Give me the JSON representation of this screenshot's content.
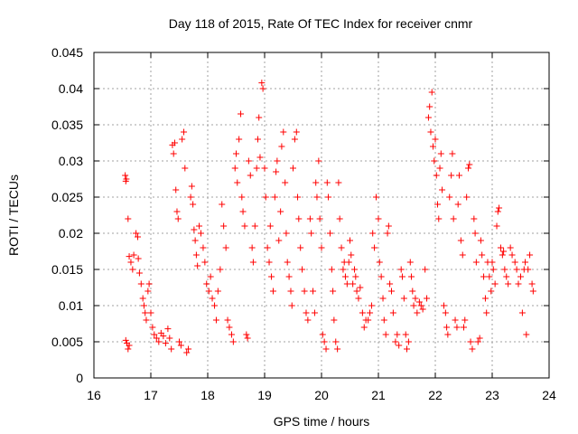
{
  "chart_data": {
    "type": "scatter",
    "title": "Day 118 of 2015, Rate Of TEC Index for receiver cnmr",
    "xlabel": "GPS time / hours",
    "ylabel": "ROTI / TECUs",
    "xlim": [
      16,
      24
    ],
    "ylim": [
      0,
      0.045
    ],
    "grid": true,
    "marker": "+",
    "color": "#ff0000",
    "xticks": [
      16,
      17,
      18,
      19,
      20,
      21,
      22,
      23,
      24
    ],
    "xtick_labels": [
      "16",
      "17",
      "18",
      "19",
      "20",
      "21",
      "22",
      "23",
      "24"
    ],
    "yticks": [
      0,
      0.005,
      0.01,
      0.015,
      0.02,
      0.025,
      0.03,
      0.035,
      0.04,
      0.045
    ],
    "ytick_labels": [
      "0",
      "0.005",
      "0.01",
      "0.015",
      "0.02",
      "0.025",
      "0.03",
      "0.035",
      "0.04",
      "0.045"
    ],
    "points": [
      [
        16.55,
        0.028
      ],
      [
        16.56,
        0.0272
      ],
      [
        16.57,
        0.0275
      ],
      [
        16.56,
        0.0052
      ],
      [
        16.58,
        0.0048
      ],
      [
        16.6,
        0.004
      ],
      [
        16.62,
        0.0045
      ],
      [
        16.6,
        0.022
      ],
      [
        16.62,
        0.0168
      ],
      [
        16.65,
        0.016
      ],
      [
        16.68,
        0.015
      ],
      [
        16.7,
        0.017
      ],
      [
        16.74,
        0.02
      ],
      [
        16.77,
        0.0195
      ],
      [
        16.78,
        0.0165
      ],
      [
        16.8,
        0.0145
      ],
      [
        16.83,
        0.013
      ],
      [
        16.86,
        0.011
      ],
      [
        16.88,
        0.01
      ],
      [
        16.9,
        0.009
      ],
      [
        16.92,
        0.008
      ],
      [
        16.95,
        0.012
      ],
      [
        16.97,
        0.013
      ],
      [
        17.0,
        0.009
      ],
      [
        17.03,
        0.007
      ],
      [
        17.06,
        0.006
      ],
      [
        17.1,
        0.0055
      ],
      [
        17.14,
        0.005
      ],
      [
        17.18,
        0.0062
      ],
      [
        17.22,
        0.0058
      ],
      [
        17.26,
        0.0048
      ],
      [
        17.3,
        0.0068
      ],
      [
        17.33,
        0.0055
      ],
      [
        17.36,
        0.004
      ],
      [
        17.38,
        0.0322
      ],
      [
        17.4,
        0.031
      ],
      [
        17.42,
        0.0325
      ],
      [
        17.44,
        0.026
      ],
      [
        17.46,
        0.023
      ],
      [
        17.48,
        0.022
      ],
      [
        17.5,
        0.005
      ],
      [
        17.53,
        0.0045
      ],
      [
        17.55,
        0.033
      ],
      [
        17.58,
        0.034
      ],
      [
        17.6,
        0.029
      ],
      [
        17.63,
        0.0035
      ],
      [
        17.66,
        0.004
      ],
      [
        17.7,
        0.025
      ],
      [
        17.72,
        0.0265
      ],
      [
        17.74,
        0.024
      ],
      [
        17.76,
        0.0205
      ],
      [
        17.78,
        0.019
      ],
      [
        17.8,
        0.017
      ],
      [
        17.82,
        0.0155
      ],
      [
        17.85,
        0.021
      ],
      [
        17.88,
        0.02
      ],
      [
        17.92,
        0.018
      ],
      [
        17.95,
        0.016
      ],
      [
        17.98,
        0.013
      ],
      [
        18.02,
        0.012
      ],
      [
        18.05,
        0.014
      ],
      [
        18.08,
        0.011
      ],
      [
        18.12,
        0.01
      ],
      [
        18.15,
        0.008
      ],
      [
        18.18,
        0.012
      ],
      [
        18.22,
        0.015
      ],
      [
        18.25,
        0.024
      ],
      [
        18.28,
        0.021
      ],
      [
        18.32,
        0.018
      ],
      [
        18.35,
        0.008
      ],
      [
        18.38,
        0.007
      ],
      [
        18.42,
        0.006
      ],
      [
        18.45,
        0.005
      ],
      [
        18.48,
        0.029
      ],
      [
        18.5,
        0.031
      ],
      [
        18.52,
        0.027
      ],
      [
        18.55,
        0.033
      ],
      [
        18.58,
        0.0365
      ],
      [
        18.6,
        0.025
      ],
      [
        18.62,
        0.023
      ],
      [
        18.65,
        0.021
      ],
      [
        18.68,
        0.006
      ],
      [
        18.7,
        0.0055
      ],
      [
        18.72,
        0.03
      ],
      [
        18.75,
        0.028
      ],
      [
        18.78,
        0.018
      ],
      [
        18.8,
        0.016
      ],
      [
        18.83,
        0.021
      ],
      [
        18.86,
        0.029
      ],
      [
        18.88,
        0.033
      ],
      [
        18.9,
        0.036
      ],
      [
        18.92,
        0.0305
      ],
      [
        18.95,
        0.0408
      ],
      [
        18.97,
        0.04
      ],
      [
        19.0,
        0.029
      ],
      [
        19.02,
        0.025
      ],
      [
        19.05,
        0.018
      ],
      [
        19.08,
        0.016
      ],
      [
        19.1,
        0.021
      ],
      [
        19.12,
        0.014
      ],
      [
        19.15,
        0.012
      ],
      [
        19.18,
        0.025
      ],
      [
        19.2,
        0.0285
      ],
      [
        19.22,
        0.03
      ],
      [
        19.25,
        0.019
      ],
      [
        19.28,
        0.023
      ],
      [
        19.3,
        0.032
      ],
      [
        19.33,
        0.034
      ],
      [
        19.36,
        0.027
      ],
      [
        19.38,
        0.02
      ],
      [
        19.4,
        0.016
      ],
      [
        19.43,
        0.014
      ],
      [
        19.46,
        0.012
      ],
      [
        19.48,
        0.01
      ],
      [
        19.5,
        0.029
      ],
      [
        19.53,
        0.033
      ],
      [
        19.56,
        0.034
      ],
      [
        19.58,
        0.025
      ],
      [
        19.6,
        0.022
      ],
      [
        19.63,
        0.018
      ],
      [
        19.66,
        0.015
      ],
      [
        19.7,
        0.012
      ],
      [
        19.73,
        0.009
      ],
      [
        19.76,
        0.008
      ],
      [
        19.8,
        0.022
      ],
      [
        19.82,
        0.02
      ],
      [
        19.85,
        0.012
      ],
      [
        19.88,
        0.009
      ],
      [
        19.9,
        0.027
      ],
      [
        19.92,
        0.025
      ],
      [
        19.95,
        0.03
      ],
      [
        19.97,
        0.022
      ],
      [
        20.0,
        0.018
      ],
      [
        20.02,
        0.006
      ],
      [
        20.05,
        0.005
      ],
      [
        20.08,
        0.004
      ],
      [
        20.1,
        0.027
      ],
      [
        20.12,
        0.025
      ],
      [
        20.15,
        0.02
      ],
      [
        20.18,
        0.015
      ],
      [
        20.2,
        0.012
      ],
      [
        20.22,
        0.008
      ],
      [
        20.25,
        0.005
      ],
      [
        20.28,
        0.004
      ],
      [
        20.3,
        0.027
      ],
      [
        20.32,
        0.022
      ],
      [
        20.35,
        0.018
      ],
      [
        20.38,
        0.015
      ],
      [
        20.4,
        0.016
      ],
      [
        20.42,
        0.014
      ],
      [
        20.45,
        0.013
      ],
      [
        20.48,
        0.016
      ],
      [
        20.5,
        0.019
      ],
      [
        20.52,
        0.017
      ],
      [
        20.55,
        0.013
      ],
      [
        20.58,
        0.015
      ],
      [
        20.6,
        0.014
      ],
      [
        20.62,
        0.012
      ],
      [
        20.65,
        0.011
      ],
      [
        20.68,
        0.0125
      ],
      [
        20.72,
        0.009
      ],
      [
        20.75,
        0.007
      ],
      [
        20.78,
        0.008
      ],
      [
        20.82,
        0.008
      ],
      [
        20.85,
        0.009
      ],
      [
        20.88,
        0.01
      ],
      [
        20.9,
        0.02
      ],
      [
        20.93,
        0.018
      ],
      [
        20.96,
        0.025
      ],
      [
        21.0,
        0.022
      ],
      [
        21.02,
        0.016
      ],
      [
        21.05,
        0.014
      ],
      [
        21.08,
        0.011
      ],
      [
        21.1,
        0.008
      ],
      [
        21.13,
        0.006
      ],
      [
        21.16,
        0.02
      ],
      [
        21.18,
        0.021
      ],
      [
        21.2,
        0.013
      ],
      [
        21.23,
        0.012
      ],
      [
        21.26,
        0.009
      ],
      [
        21.3,
        0.005
      ],
      [
        21.33,
        0.006
      ],
      [
        21.36,
        0.0045
      ],
      [
        21.4,
        0.015
      ],
      [
        21.42,
        0.014
      ],
      [
        21.45,
        0.011
      ],
      [
        21.48,
        0.006
      ],
      [
        21.5,
        0.004
      ],
      [
        21.53,
        0.005
      ],
      [
        21.56,
        0.016
      ],
      [
        21.58,
        0.014
      ],
      [
        21.6,
        0.012
      ],
      [
        21.62,
        0.01
      ],
      [
        21.65,
        0.011
      ],
      [
        21.68,
        0.009
      ],
      [
        21.72,
        0.0105
      ],
      [
        21.75,
        0.01
      ],
      [
        21.78,
        0.0095
      ],
      [
        21.82,
        0.015
      ],
      [
        21.85,
        0.011
      ],
      [
        21.88,
        0.036
      ],
      [
        21.9,
        0.0375
      ],
      [
        21.92,
        0.034
      ],
      [
        21.94,
        0.0395
      ],
      [
        21.96,
        0.032
      ],
      [
        21.98,
        0.03
      ],
      [
        22.0,
        0.033
      ],
      [
        22.02,
        0.028
      ],
      [
        22.04,
        0.024
      ],
      [
        22.06,
        0.022
      ],
      [
        22.08,
        0.029
      ],
      [
        22.1,
        0.031
      ],
      [
        22.12,
        0.026
      ],
      [
        22.15,
        0.01
      ],
      [
        22.18,
        0.009
      ],
      [
        22.2,
        0.007
      ],
      [
        22.22,
        0.006
      ],
      [
        22.25,
        0.025
      ],
      [
        22.28,
        0.028
      ],
      [
        22.3,
        0.031
      ],
      [
        22.32,
        0.022
      ],
      [
        22.35,
        0.008
      ],
      [
        22.38,
        0.007
      ],
      [
        22.4,
        0.024
      ],
      [
        22.42,
        0.028
      ],
      [
        22.45,
        0.019
      ],
      [
        22.48,
        0.017
      ],
      [
        22.5,
        0.007
      ],
      [
        22.52,
        0.008
      ],
      [
        22.55,
        0.025
      ],
      [
        22.58,
        0.029
      ],
      [
        22.6,
        0.0295
      ],
      [
        22.62,
        0.005
      ],
      [
        22.65,
        0.004
      ],
      [
        22.68,
        0.022
      ],
      [
        22.7,
        0.02
      ],
      [
        22.72,
        0.016
      ],
      [
        22.75,
        0.005
      ],
      [
        22.78,
        0.0055
      ],
      [
        22.8,
        0.019
      ],
      [
        22.82,
        0.017
      ],
      [
        22.85,
        0.014
      ],
      [
        22.88,
        0.011
      ],
      [
        22.9,
        0.009
      ],
      [
        22.92,
        0.016
      ],
      [
        22.95,
        0.014
      ],
      [
        22.98,
        0.012
      ],
      [
        23.0,
        0.016
      ],
      [
        23.02,
        0.015
      ],
      [
        23.05,
        0.013
      ],
      [
        23.08,
        0.021
      ],
      [
        23.1,
        0.023
      ],
      [
        23.12,
        0.0235
      ],
      [
        23.15,
        0.018
      ],
      [
        23.18,
        0.017
      ],
      [
        23.2,
        0.0175
      ],
      [
        23.22,
        0.015
      ],
      [
        23.25,
        0.014
      ],
      [
        23.28,
        0.013
      ],
      [
        23.32,
        0.018
      ],
      [
        23.35,
        0.017
      ],
      [
        23.4,
        0.016
      ],
      [
        23.43,
        0.015
      ],
      [
        23.46,
        0.013
      ],
      [
        23.5,
        0.014
      ],
      [
        23.53,
        0.009
      ],
      [
        23.56,
        0.015
      ],
      [
        23.58,
        0.016
      ],
      [
        23.6,
        0.006
      ],
      [
        23.63,
        0.015
      ],
      [
        23.66,
        0.017
      ],
      [
        23.7,
        0.013
      ],
      [
        23.72,
        0.012
      ]
    ]
  }
}
